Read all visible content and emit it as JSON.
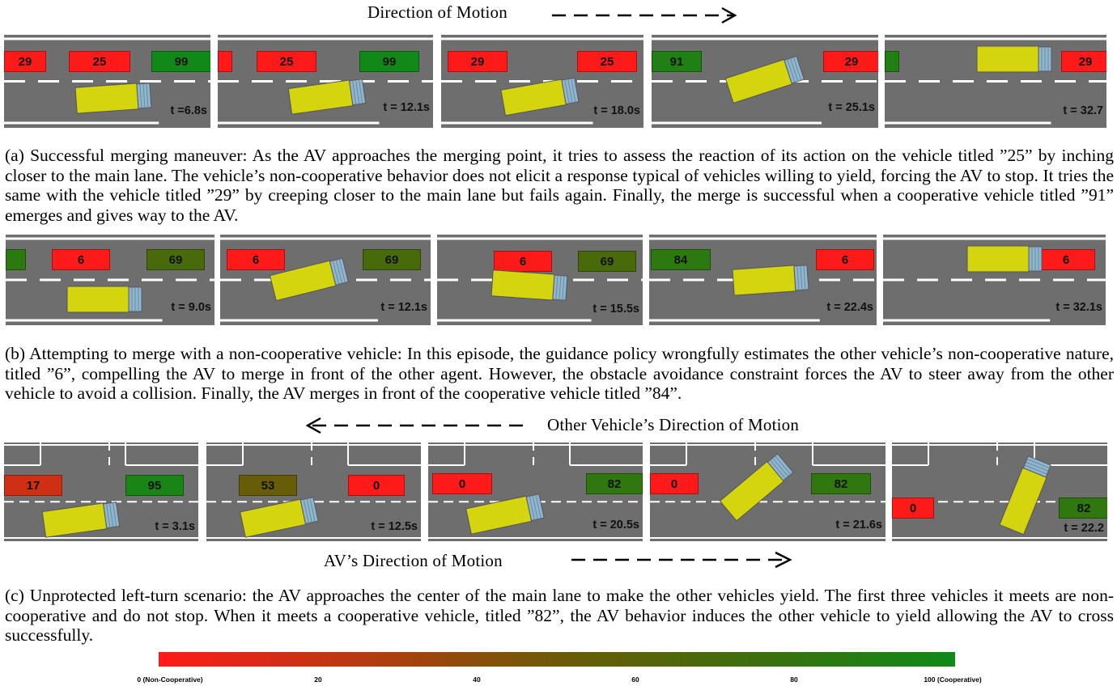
{
  "headings": {
    "top": "Direction of Motion",
    "other": "Other Vehicle’s Direction of Motion",
    "av": "AV’s Direction of Motion"
  },
  "captions": {
    "a": "(a) Successful merging maneuver: As the AV approaches the merging point, it tries to assess the reaction of its action on the vehicle titled ”25” by inching closer to the main lane. The vehicle’s non-cooperative behavior does not elicit a response typical of vehicles willing to yield, forcing the AV to stop. It tries the same with the vehicle titled ”29” by creeping closer to the main lane but fails again. Finally, the merge is successful when a cooperative vehicle titled ”91” emerges and gives way to the AV.",
    "b": "(b) Attempting to merge with a non-cooperative vehicle: In this episode, the guidance policy wrongfully estimates the other vehicle’s non-cooperative nature, titled ”6”, compelling the AV to merge in front of the other agent. However, the obstacle avoidance constraint forces the AV to steer away from the other vehicle to avoid a collision. Finally, the AV merges in front of the cooperative vehicle titled ”84”.",
    "c": "(c) Unprotected left-turn scenario: the AV approaches the center of the main lane to make the other vehicles yield. The first three vehicles it meets are non-cooperative and do not stop. When it meets a cooperative vehicle, titled ”82”, the AV behavior induces the other vehicle to yield allowing the AV to cross successfully."
  },
  "colors": {
    "road": "#6e6e6e",
    "lane_marking": "#ffffff",
    "av_truck": "#d4d40f",
    "av_trailer": "#8fb6cc",
    "cooperative": "#0f8a18",
    "non_cooperative": "#ff1a1a"
  },
  "rows": [
    {
      "id": "a",
      "frames": [
        {
          "time": "t =6.8s",
          "vehicles": [
            {
              "label": "29",
              "coop": 0
            },
            {
              "label": "25",
              "coop": 0
            },
            {
              "label": "99",
              "coop": 99
            }
          ]
        },
        {
          "time": "t = 12.1s",
          "vehicles": [
            {
              "label": "",
              "coop": 0
            },
            {
              "label": "25",
              "coop": 0
            },
            {
              "label": "99",
              "coop": 99
            }
          ]
        },
        {
          "time": "t = 18.0s",
          "vehicles": [
            {
              "label": "29",
              "coop": 0
            },
            {
              "label": "25",
              "coop": 0
            }
          ]
        },
        {
          "time": "t = 25.1s",
          "vehicles": [
            {
              "label": "91",
              "coop": 91
            },
            {
              "label": "29",
              "coop": 0
            }
          ]
        },
        {
          "time": "t = 32.7",
          "vehicles": [
            {
              "label": "",
              "coop": 91
            },
            {
              "label": "29",
              "coop": 0
            }
          ]
        }
      ]
    },
    {
      "id": "b",
      "frames": [
        {
          "time": "t = 9.0s",
          "vehicles": [
            {
              "label": "",
              "coop": 84
            },
            {
              "label": "6",
              "coop": 0
            },
            {
              "label": "69",
              "coop": 69
            }
          ]
        },
        {
          "time": "t = 12.1s",
          "vehicles": [
            {
              "label": "6",
              "coop": 0
            },
            {
              "label": "69",
              "coop": 69
            }
          ]
        },
        {
          "time": "t = 15.5s",
          "vehicles": [
            {
              "label": "6",
              "coop": 0
            },
            {
              "label": "69",
              "coop": 69
            }
          ]
        },
        {
          "time": "t = 22.4s",
          "vehicles": [
            {
              "label": "84",
              "coop": 84
            },
            {
              "label": "6",
              "coop": 0
            }
          ]
        },
        {
          "time": "t = 32.1s",
          "vehicles": [
            {
              "label": "6",
              "coop": 0
            }
          ]
        }
      ]
    },
    {
      "id": "c",
      "frames": [
        {
          "time": "t = 3.1s",
          "vehicles": [
            {
              "label": "17",
              "coop": 17
            },
            {
              "label": "95",
              "coop": 95
            }
          ]
        },
        {
          "time": "t = 12.5s",
          "vehicles": [
            {
              "label": "53",
              "coop": 53
            },
            {
              "label": "0",
              "coop": 0
            }
          ]
        },
        {
          "time": "t = 20.5s",
          "vehicles": [
            {
              "label": "0",
              "coop": 0
            },
            {
              "label": "82",
              "coop": 82
            }
          ]
        },
        {
          "time": "t = 21.6s",
          "vehicles": [
            {
              "label": "0",
              "coop": 0
            },
            {
              "label": "82",
              "coop": 82
            }
          ]
        },
        {
          "time": "t = 22.2",
          "vehicles": [
            {
              "label": "0",
              "coop": 0
            },
            {
              "label": "82",
              "coop": 82
            }
          ]
        }
      ]
    }
  ],
  "colorbar": {
    "ticks": [
      "0 (Non-Cooperative)",
      "20",
      "40",
      "60",
      "80",
      "100 (Cooperative)"
    ]
  }
}
